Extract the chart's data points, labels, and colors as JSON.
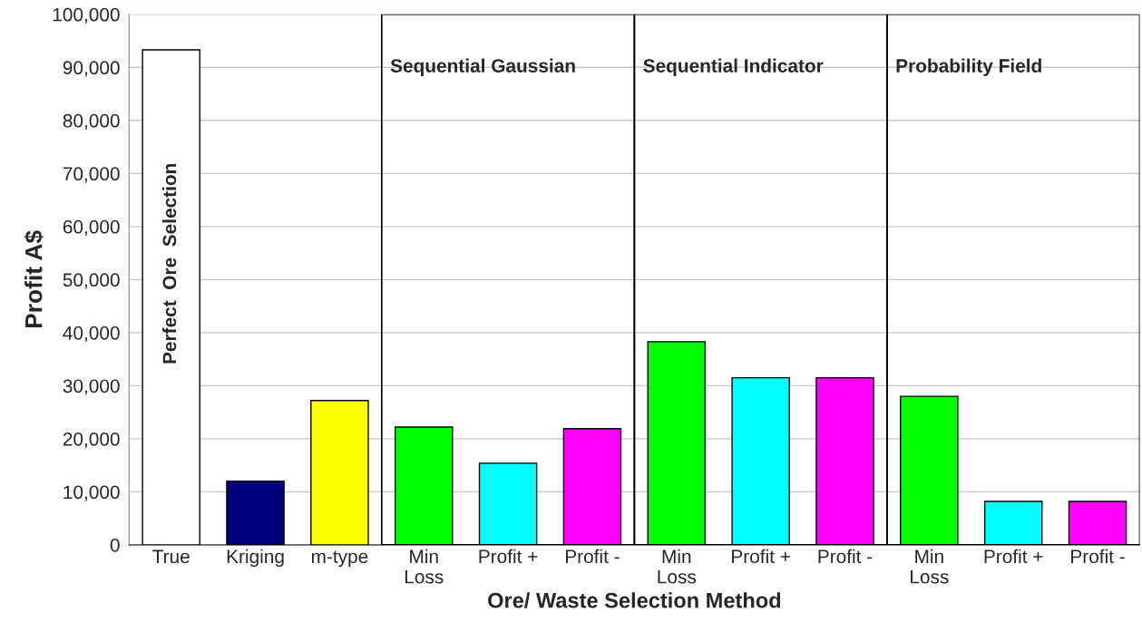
{
  "chart_data": {
    "type": "bar",
    "xlabel": "Ore/ Waste Selection Method",
    "ylabel": "Profit A$",
    "categories": [
      "True",
      "Kriging",
      "m-type",
      "Min\nLoss",
      "Profit +",
      "Profit -",
      "Min\nLoss",
      "Profit +",
      "Profit -",
      "Min\nLoss",
      "Profit +",
      "Profit -"
    ],
    "values": [
      93300,
      12000,
      27200,
      22200,
      15400,
      21900,
      38300,
      31500,
      31500,
      28000,
      8200,
      8200
    ],
    "colors": [
      "#ffffff",
      "#000080",
      "#ffff00",
      "#00ff00",
      "#00ffff",
      "#ff00ff",
      "#00ff00",
      "#00ffff",
      "#ff00ff",
      "#00ff00",
      "#00ffff",
      "#ff00ff"
    ],
    "ylim": [
      0,
      100000
    ],
    "yticks": [
      0,
      {
        "value": 10000,
        "label": "10,000"
      },
      {
        "value": 20000,
        "label": "20,000"
      },
      {
        "value": 30000,
        "label": "30,000"
      },
      {
        "value": 40000,
        "label": "40,000"
      },
      {
        "value": 50000,
        "label": "50,000"
      },
      {
        "value": 60000,
        "label": "60,000"
      },
      {
        "value": 70000,
        "label": "70,000"
      },
      {
        "value": 80000,
        "label": "80,000"
      },
      {
        "value": 90000,
        "label": "90,000"
      },
      {
        "value": 100000,
        "label": "100,000"
      }
    ],
    "grid": "y",
    "annotations": [
      "Perfect  Ore  Selection",
      "Sequential Gaussian",
      "Sequential Indicator",
      "Probability Field"
    ]
  }
}
